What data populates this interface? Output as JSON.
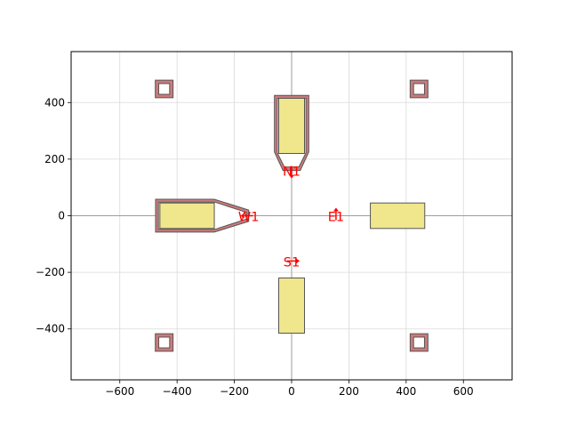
{
  "chart_data": {
    "type": "layout-diagram",
    "title": "",
    "xlabel": "",
    "ylabel": "",
    "xlim": [
      -770,
      770
    ],
    "ylim": [
      -580,
      580
    ],
    "grid": true,
    "xticks": [
      -600,
      -400,
      -200,
      0,
      200,
      400,
      600
    ],
    "yticks": [
      -400,
      -200,
      0,
      200,
      400
    ],
    "xtick_labels": [
      "−600",
      "−400",
      "−200",
      "0",
      "200",
      "400",
      "600"
    ],
    "ytick_labels": [
      "−400",
      "−200",
      "0",
      "200",
      "400"
    ],
    "colors": {
      "pad_fill": "#f0e68c",
      "pad_edge": "#555555",
      "trace_fill": "#cd7a7a",
      "trace_edge": "#555555",
      "port_label": "#ff0000",
      "axis_line": "#9e9e9e",
      "grid": "#d9d9d9"
    },
    "pads": [
      {
        "id": "pad-north",
        "x0": -45,
        "x1": 45,
        "y0": 220,
        "y1": 415
      },
      {
        "id": "pad-south",
        "x0": -45,
        "x1": 45,
        "y0": -415,
        "y1": -220
      },
      {
        "id": "pad-west",
        "x0": -460,
        "x1": -270,
        "y0": -45,
        "y1": 45
      },
      {
        "id": "pad-east",
        "x0": 275,
        "x1": 465,
        "y0": -45,
        "y1": 45
      }
    ],
    "traces": [
      {
        "id": "trace-north",
        "points": [
          [
            -60,
            425
          ],
          [
            60,
            425
          ],
          [
            60,
            225
          ],
          [
            30,
            160
          ],
          [
            -30,
            160
          ],
          [
            -60,
            225
          ]
        ],
        "inner": [
          [
            -50,
            415
          ],
          [
            50,
            415
          ],
          [
            50,
            222
          ],
          [
            25,
            172
          ],
          [
            -25,
            172
          ],
          [
            -50,
            222
          ]
        ]
      },
      {
        "id": "trace-west",
        "points": [
          [
            -475,
            58
          ],
          [
            -270,
            58
          ],
          [
            -150,
            20
          ],
          [
            -150,
            -20
          ],
          [
            -270,
            -58
          ],
          [
            -475,
            -58
          ]
        ],
        "inner": [
          [
            -465,
            48
          ],
          [
            -268,
            48
          ],
          [
            -158,
            12
          ],
          [
            -158,
            -12
          ],
          [
            -268,
            -48
          ],
          [
            -465,
            -48
          ]
        ]
      }
    ],
    "markers": [
      {
        "id": "marker-nw",
        "cx": -445,
        "cy": 448,
        "size": 62,
        "inner": 38
      },
      {
        "id": "marker-ne",
        "cx": 445,
        "cy": 448,
        "size": 62,
        "inner": 38
      },
      {
        "id": "marker-sw",
        "cx": -445,
        "cy": -448,
        "size": 62,
        "inner": 38
      },
      {
        "id": "marker-se",
        "cx": 445,
        "cy": -448,
        "size": 62,
        "inner": 38
      }
    ],
    "ports": [
      {
        "name": "N1",
        "x": 0,
        "y": 160,
        "dir": "down"
      },
      {
        "name": "S1",
        "x": 0,
        "y": -160,
        "dir": "right"
      },
      {
        "name": "W1",
        "x": -150,
        "y": 0,
        "dir": "left"
      },
      {
        "name": "E1",
        "x": 155,
        "y": 0,
        "dir": "up"
      }
    ]
  }
}
